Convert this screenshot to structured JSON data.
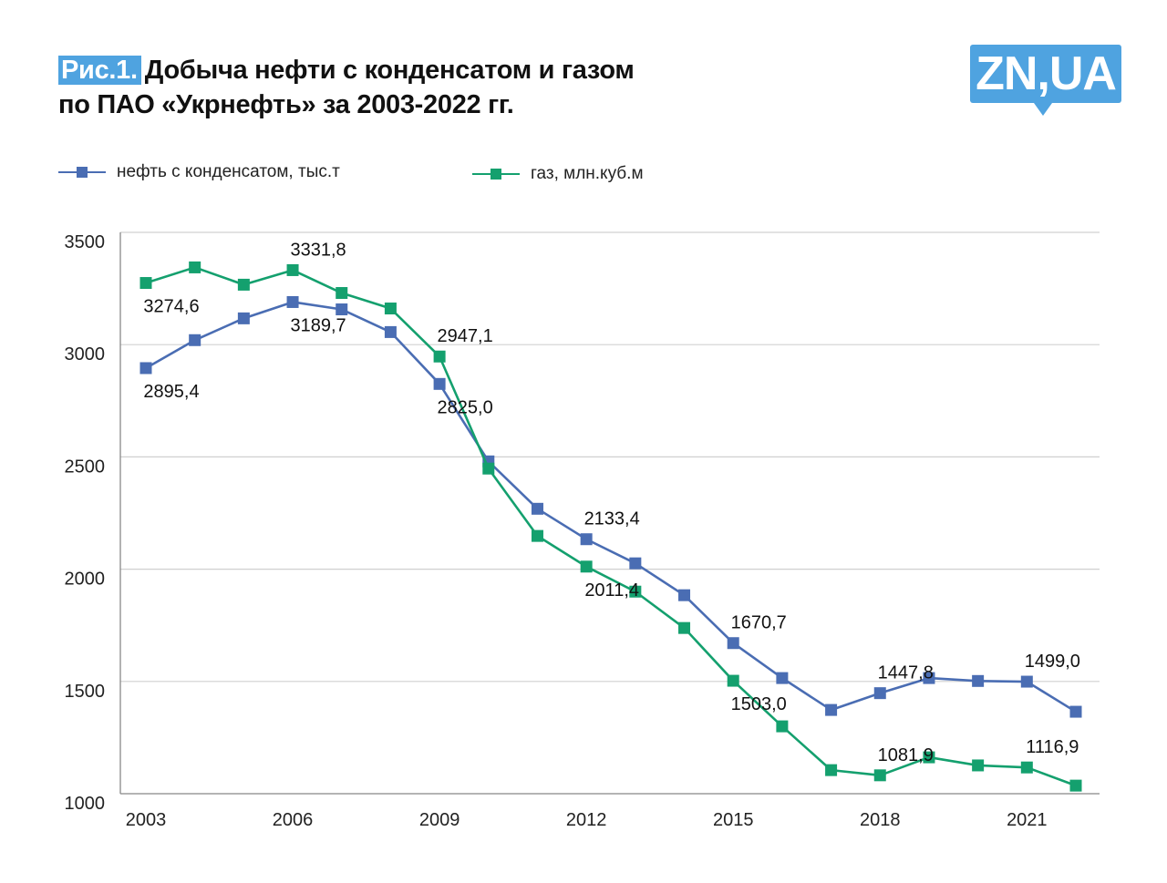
{
  "header": {
    "figure_label": "Рис.1.",
    "title_line1": "Добыча нефти с конденсатом и газом",
    "title_line2": "по ПАО «Укрнефть» за 2003-2022 гг.",
    "logo_text": "ZN,UA"
  },
  "colors": {
    "oil": "#4a6db3",
    "gas": "#14a06e",
    "brand": "#4fa3e0",
    "grid": "#d0d0d0",
    "axis": "#888888"
  },
  "chart_data": {
    "type": "line",
    "title": "Добыча нефти с конденсатом и газом по ПАО «Укрнефть» за 2003-2022 гг.",
    "xlabel": "",
    "ylabel": "",
    "x": [
      2003,
      2004,
      2005,
      2006,
      2007,
      2008,
      2009,
      2010,
      2011,
      2012,
      2013,
      2014,
      2015,
      2016,
      2017,
      2018,
      2019,
      2020,
      2021,
      2022
    ],
    "x_tick_labels": [
      "2003",
      "2006",
      "2009",
      "2012",
      "2015",
      "2018",
      "2021"
    ],
    "y_tick_labels": [
      "1000",
      "1500",
      "2000",
      "2500",
      "3000",
      "3500"
    ],
    "y_ticks": [
      1000,
      1500,
      2000,
      2500,
      3000,
      3500
    ],
    "ylim": [
      1000,
      3500
    ],
    "grid": true,
    "legend_position": "top-left",
    "series": [
      {
        "name": "нефть с конденсатом, тыс.т",
        "key": "oil",
        "values": [
          2895.4,
          3020,
          3117,
          3189.7,
          3157,
          3056,
          2825.0,
          2480,
          2269,
          2133.4,
          2026,
          1884,
          1670.7,
          1515,
          1373,
          1447.8,
          1515,
          1502,
          1499.0,
          1365
        ],
        "data_labels": [
          {
            "year": 2003,
            "text": "2895,4",
            "pos": "below"
          },
          {
            "year": 2006,
            "text": "3189,7",
            "pos": "below"
          },
          {
            "year": 2009,
            "text": "2825,0",
            "pos": "below"
          },
          {
            "year": 2012,
            "text": "2133,4",
            "pos": "above"
          },
          {
            "year": 2015,
            "text": "1670,7",
            "pos": "above"
          },
          {
            "year": 2018,
            "text": "1447,8",
            "pos": "above"
          },
          {
            "year": 2021,
            "text": "1499,0",
            "pos": "above"
          }
        ]
      },
      {
        "name": "газ, млн.куб.м",
        "key": "gas",
        "values": [
          3274.6,
          3344,
          3267,
          3331.8,
          3230,
          3161,
          2947.1,
          2448,
          2148,
          2011.4,
          1900,
          1738,
          1503.0,
          1300,
          1105,
          1081.9,
          1162,
          1126,
          1116.9,
          1036
        ],
        "data_labels": [
          {
            "year": 2003,
            "text": "3274,6",
            "pos": "below"
          },
          {
            "year": 2006,
            "text": "3331,8",
            "pos": "above"
          },
          {
            "year": 2009,
            "text": "2947,1",
            "pos": "above"
          },
          {
            "year": 2012,
            "text": "2011,4",
            "pos": "below"
          },
          {
            "year": 2015,
            "text": "1503,0",
            "pos": "below"
          },
          {
            "year": 2018,
            "text": "1081,9",
            "pos": "above"
          },
          {
            "year": 2021,
            "text": "1116,9",
            "pos": "above"
          }
        ]
      }
    ]
  }
}
